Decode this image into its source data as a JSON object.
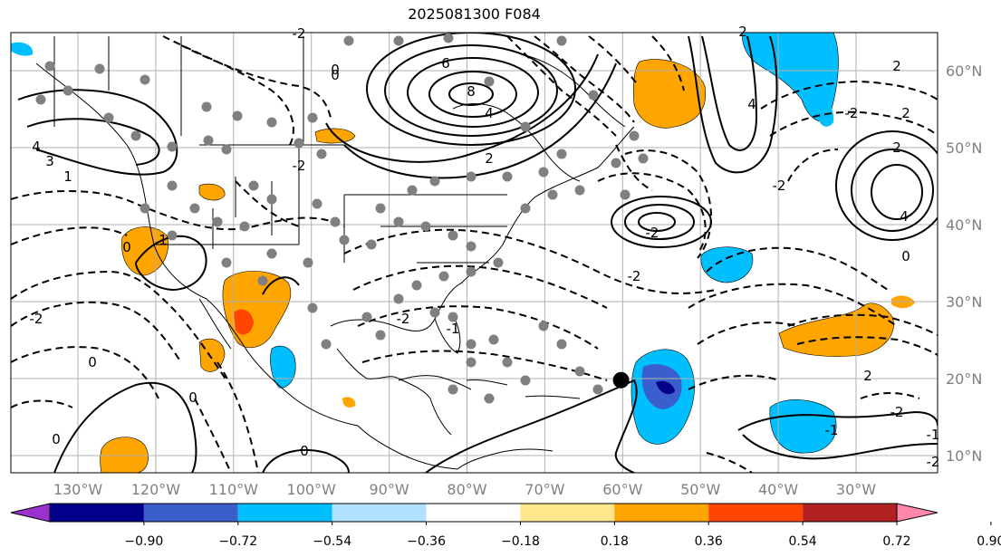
{
  "title": "2025081300 F084",
  "map": {
    "lon_labels": [
      "130°W",
      "120°W",
      "110°W",
      "100°W",
      "90°W",
      "80°W",
      "70°W",
      "60°W",
      "50°W",
      "40°W",
      "30°W"
    ],
    "lat_labels": [
      "60°N",
      "50°N",
      "40°N",
      "30°N",
      "20°N",
      "10°N"
    ],
    "contour_labels": [
      "8",
      "6",
      "4",
      "3",
      "4",
      "2",
      "0",
      "-2",
      "-2",
      "-2",
      "-2",
      "-2",
      "0",
      "2",
      "2",
      "2",
      "4",
      "4",
      "2",
      "0",
      "-1",
      "-2",
      "-1",
      "0",
      "0",
      "0",
      "-2",
      "2",
      "-2",
      "1",
      "-2",
      "-2",
      "0",
      "1",
      "0",
      "-1"
    ],
    "storm_marker": {
      "lon": -60.2,
      "lat": 19.8
    }
  },
  "colorbar": {
    "labels": [
      "−0.90",
      "−0.72",
      "−0.54",
      "−0.36",
      "−0.18",
      "0.18",
      "0.36",
      "0.54",
      "0.72",
      "0.90"
    ],
    "colors": [
      "#9b32cd",
      "#00008b",
      "#3a5fcd",
      "#00bfff",
      "#b0e2ff",
      "#ffffff",
      "#fde68c",
      "#ffa500",
      "#ff4500",
      "#b22222",
      "#ff88aa"
    ]
  }
}
